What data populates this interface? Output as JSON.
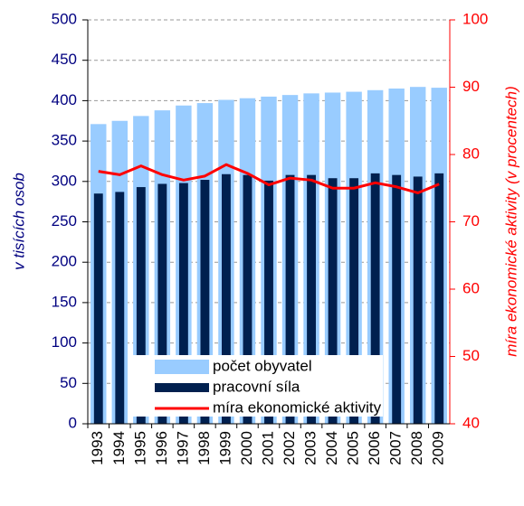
{
  "chart_data": {
    "type": "bar",
    "categories": [
      "1993",
      "1994",
      "1995",
      "1996",
      "1997",
      "1998",
      "1999",
      "2000",
      "2001",
      "2002",
      "2003",
      "2004",
      "2005",
      "2006",
      "2007",
      "2008",
      "2009"
    ],
    "series": [
      {
        "name": "počet obyvatel",
        "type": "bar",
        "color": "#99ccff",
        "values": [
          371,
          375,
          381,
          388,
          394,
          397,
          401,
          403,
          405,
          407,
          409,
          410,
          411,
          413,
          415,
          417,
          416
        ]
      },
      {
        "name": "pracovní síla",
        "type": "bar",
        "color": "#00204f",
        "values": [
          285,
          287,
          293,
          297,
          298,
          302,
          309,
          308,
          301,
          308,
          308,
          304,
          304,
          310,
          308,
          306,
          310
        ]
      },
      {
        "name": "míra ekonomické aktivity",
        "type": "line",
        "axis": "y2",
        "color": "#ff0000",
        "values": [
          77.5,
          77.0,
          78.3,
          77.0,
          76.2,
          76.8,
          78.5,
          77.2,
          75.5,
          76.5,
          76.2,
          75.0,
          75.0,
          75.8,
          75.2,
          74.3,
          75.6
        ]
      }
    ],
    "ylabel": "v tisících osob",
    "y2label": "míra ekonomické aktivity (v procentech)",
    "ylim": [
      0,
      500
    ],
    "yticks": [
      0,
      50,
      100,
      150,
      200,
      250,
      300,
      350,
      400,
      450,
      500
    ],
    "y2lim": [
      40,
      100
    ],
    "y2ticks": [
      40,
      50,
      60,
      70,
      80,
      90,
      100
    ],
    "grid": true,
    "legend": "lower center"
  }
}
